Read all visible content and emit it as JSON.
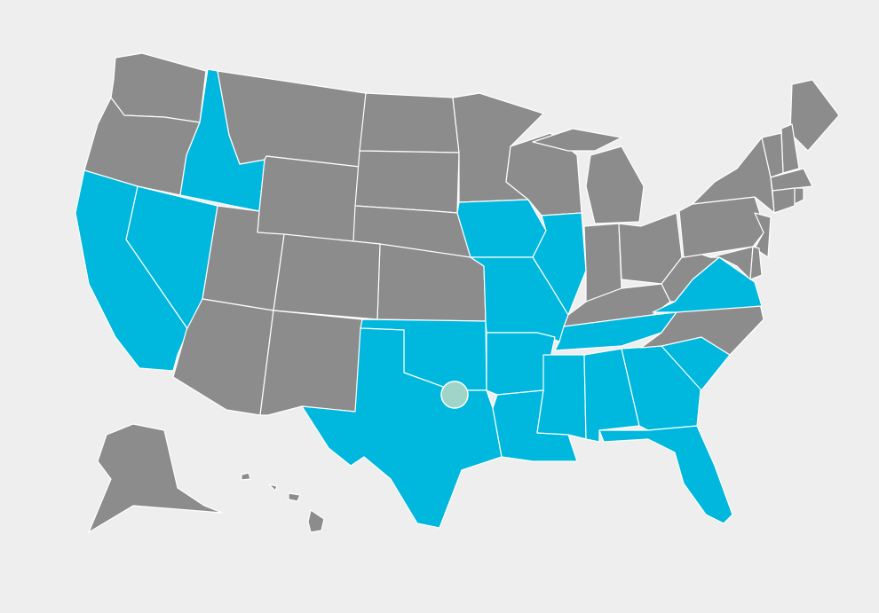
{
  "map": {
    "colors": {
      "background": "#eeeeee",
      "default_state": "#8c8c8c",
      "highlighted_state": "#00b8de",
      "border": "#ffffff",
      "marker": "#9fd5c8"
    },
    "highlighted_states": [
      "ID",
      "CA",
      "NV",
      "IA",
      "IL",
      "MO",
      "AR",
      "OK",
      "TX",
      "LA",
      "MS",
      "AL",
      "GA",
      "FL",
      "SC",
      "TN",
      "VA"
    ],
    "states": [
      "WA",
      "OR",
      "ID",
      "MT",
      "WY",
      "ND",
      "SD",
      "NE",
      "KS",
      "CO",
      "UT",
      "NV",
      "CA",
      "AZ",
      "NM",
      "OK",
      "TX",
      "MN",
      "IA",
      "MO",
      "AR",
      "LA",
      "WI",
      "IL",
      "MI",
      "IN",
      "OH",
      "KY",
      "TN",
      "MS",
      "AL",
      "GA",
      "FL",
      "SC",
      "NC",
      "VA",
      "WV",
      "PA",
      "NY",
      "ME",
      "NH",
      "VT",
      "MA",
      "CT",
      "RI",
      "NJ",
      "MD",
      "DE",
      "AK",
      "HI"
    ],
    "marker": {
      "state": "TX"
    }
  }
}
